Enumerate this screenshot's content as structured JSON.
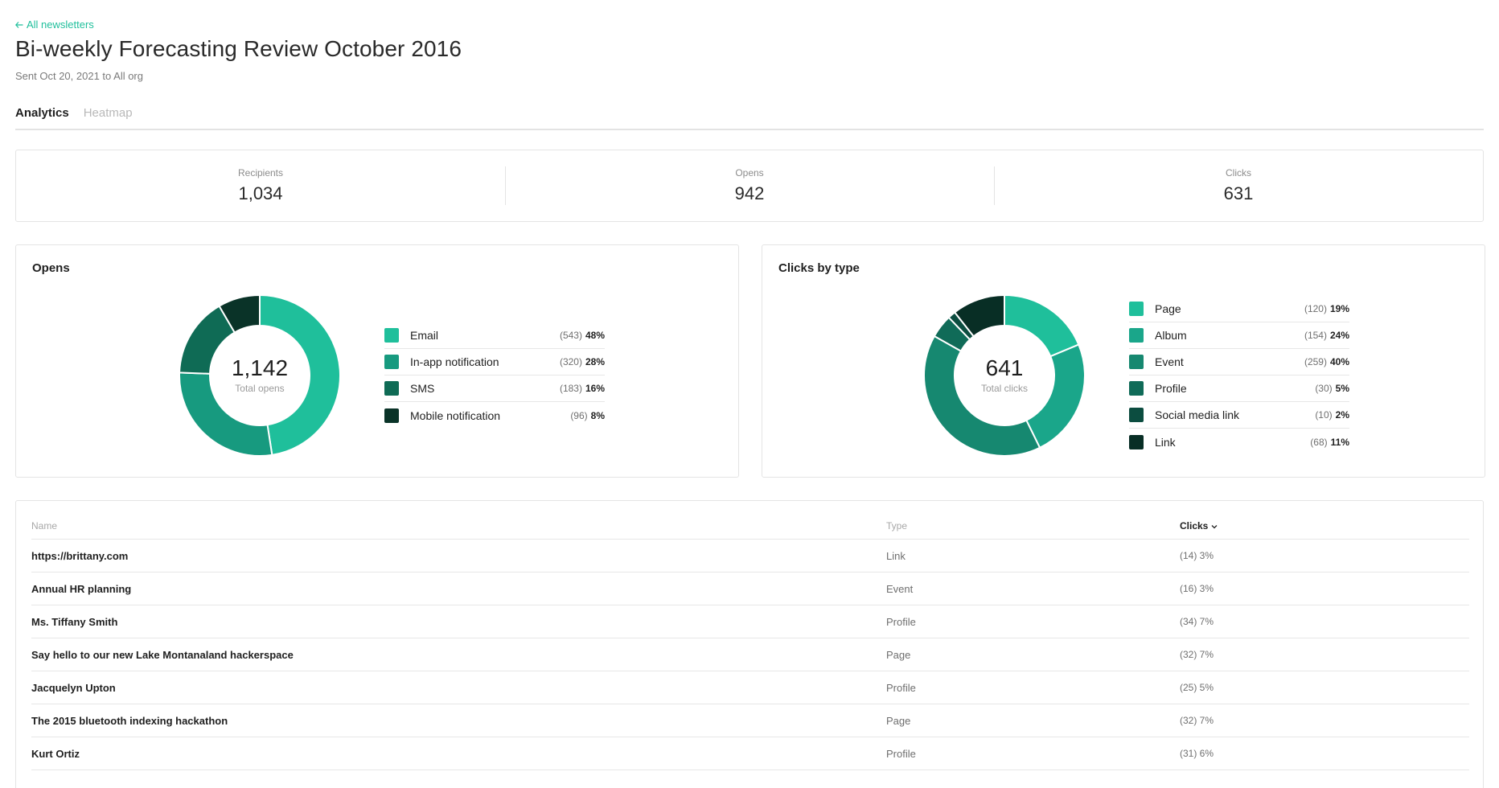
{
  "header": {
    "back_link": "All newsletters",
    "title": "Bi-weekly Forecasting Review October 2016",
    "subtitle": "Sent Oct 20, 2021 to All org"
  },
  "tabs": [
    {
      "label": "Analytics",
      "active": true
    },
    {
      "label": "Heatmap",
      "active": false
    }
  ],
  "stats": [
    {
      "label": "Recipients",
      "value": "1,034"
    },
    {
      "label": "Opens",
      "value": "942"
    },
    {
      "label": "Clicks",
      "value": "631"
    }
  ],
  "opens_card": {
    "title": "Opens",
    "center_value": "1,142",
    "center_label": "Total opens",
    "items": [
      {
        "name": "Email",
        "count": "(543)",
        "pct": "48%",
        "value": 543,
        "color": "#1fbf9b"
      },
      {
        "name": "In-app notification",
        "count": "(320)",
        "pct": "28%",
        "value": 320,
        "color": "#179a7f"
      },
      {
        "name": "SMS",
        "count": "(183)",
        "pct": "16%",
        "value": 183,
        "color": "#0f6b55"
      },
      {
        "name": "Mobile notification",
        "count": "(96)",
        "pct": "8%",
        "value": 96,
        "color": "#0a3328"
      }
    ]
  },
  "clicks_card": {
    "title": "Clicks by type",
    "center_value": "641",
    "center_label": "Total clicks",
    "items": [
      {
        "name": "Page",
        "count": "(120)",
        "pct": "19%",
        "value": 120,
        "color": "#1fbf9b"
      },
      {
        "name": "Album",
        "count": "(154)",
        "pct": "24%",
        "value": 154,
        "color": "#1aa68a"
      },
      {
        "name": "Event",
        "count": "(259)",
        "pct": "40%",
        "value": 259,
        "color": "#168870"
      },
      {
        "name": "Profile",
        "count": "(30)",
        "pct": "5%",
        "value": 30,
        "color": "#106b58"
      },
      {
        "name": "Social media link",
        "count": "(10)",
        "pct": "2%",
        "value": 10,
        "color": "#0c4d40"
      },
      {
        "name": "Link",
        "count": "(68)",
        "pct": "11%",
        "value": 68,
        "color": "#082e25"
      }
    ]
  },
  "table": {
    "headers": {
      "name": "Name",
      "type": "Type",
      "clicks": "Clicks"
    },
    "rows": [
      {
        "name": "https://brittany.com",
        "type": "Link",
        "clicks": "(14) 3%"
      },
      {
        "name": "Annual HR planning",
        "type": "Event",
        "clicks": "(16) 3%"
      },
      {
        "name": "Ms. Tiffany Smith",
        "type": "Profile",
        "clicks": "(34) 7%"
      },
      {
        "name": "Say hello to our new Lake Montanaland hackerspace",
        "type": "Page",
        "clicks": "(32) 7%"
      },
      {
        "name": "Jacquelyn Upton",
        "type": "Profile",
        "clicks": "(25) 5%"
      },
      {
        "name": "The 2015 bluetooth indexing hackathon",
        "type": "Page",
        "clicks": "(32) 7%"
      },
      {
        "name": "Kurt Ortiz",
        "type": "Profile",
        "clicks": "(31) 6%"
      }
    ]
  },
  "icons": {
    "back": "arrow-left-icon",
    "sort": "chevron-down-icon"
  }
}
